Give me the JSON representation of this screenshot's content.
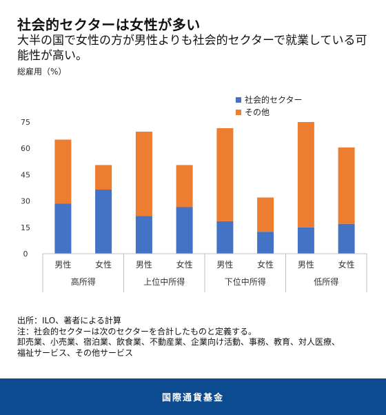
{
  "header": {
    "title": "社会的セクターは女性が多い",
    "subtitle": "大半の国で女性の方が男性よりも社会的セクターで就業している可能性が高い。"
  },
  "chart_data": {
    "type": "bar",
    "stacked": true,
    "ylabel": "総雇用（%）",
    "ylim": [
      0,
      75
    ],
    "yticks": [
      0,
      15,
      30,
      45,
      60,
      75
    ],
    "grid": false,
    "legend_position": "top-right",
    "categories": [
      "男性",
      "女性",
      "男性",
      "女性",
      "男性",
      "女性",
      "男性",
      "女性"
    ],
    "groups": [
      {
        "label": "高所得",
        "span": 2
      },
      {
        "label": "上位中所得",
        "span": 2
      },
      {
        "label": "下位中所得",
        "span": 2
      },
      {
        "label": "低所得",
        "span": 2
      }
    ],
    "series": [
      {
        "name": "社会的セクター",
        "color": "#4472c4",
        "values": [
          28.5,
          36.5,
          21.5,
          26.5,
          18.5,
          12.5,
          15,
          17
        ]
      },
      {
        "name": "その他",
        "color": "#ed7d31",
        "values": [
          36.5,
          14,
          48,
          24,
          53,
          19.5,
          60,
          43.5
        ]
      }
    ]
  },
  "notes": {
    "source": "出所：ILO、著者による計算",
    "note_1": "注：社会的セクターは次のセクターを合計したものと定義する。",
    "note_2": "卸売業、小売業、宿泊業、飲食業、不動産業、企業向け活動、事務、教育、対人医療、",
    "note_3": "福祉サービス、その他サービス"
  },
  "footer": {
    "org": "国際通貨基金"
  }
}
